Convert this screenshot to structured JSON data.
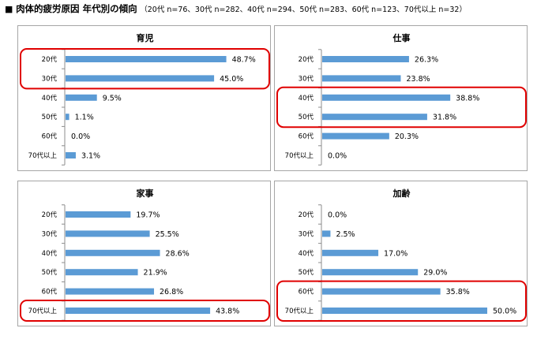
{
  "title": {
    "marker": "■",
    "main": "肉体的疲労原因 年代別の傾向",
    "sub": "（20代 n=76、30代 n=282、40代 n=294、50代 n=283、60代 n=123、70代以上 n=32）"
  },
  "colors": {
    "bar": "#5b9bd5",
    "highlight": "#e00000",
    "border": "#a6a6a6"
  },
  "chart_data": [
    {
      "type": "bar",
      "orientation": "horizontal",
      "title": "育児",
      "categories": [
        "20代",
        "30代",
        "40代",
        "50代",
        "60代",
        "70代以上"
      ],
      "values": [
        48.7,
        45.0,
        9.5,
        1.1,
        0.0,
        3.1
      ],
      "labels": [
        "48.7%",
        "45.0%",
        "9.5%",
        "1.1%",
        "0.0%",
        "3.1%"
      ],
      "highlight": [
        "20代",
        "30代"
      ],
      "xlim": [
        0,
        60
      ]
    },
    {
      "type": "bar",
      "orientation": "horizontal",
      "title": "仕事",
      "categories": [
        "20代",
        "30代",
        "40代",
        "50代",
        "60代",
        "70代以上"
      ],
      "values": [
        26.3,
        23.8,
        38.8,
        31.8,
        20.3,
        0.0
      ],
      "labels": [
        "26.3%",
        "23.8%",
        "38.8%",
        "31.8%",
        "20.3%",
        "0.0%"
      ],
      "highlight": [
        "40代",
        "50代"
      ],
      "xlim": [
        0,
        60
      ]
    },
    {
      "type": "bar",
      "orientation": "horizontal",
      "title": "家事",
      "categories": [
        "20代",
        "30代",
        "40代",
        "50代",
        "60代",
        "70代以上"
      ],
      "values": [
        19.7,
        25.5,
        28.6,
        21.9,
        26.8,
        43.8
      ],
      "labels": [
        "19.7%",
        "25.5%",
        "28.6%",
        "21.9%",
        "26.8%",
        "43.8%"
      ],
      "highlight": [
        "70代以上"
      ],
      "xlim": [
        0,
        60
      ]
    },
    {
      "type": "bar",
      "orientation": "horizontal",
      "title": "加齢",
      "categories": [
        "20代",
        "30代",
        "40代",
        "50代",
        "60代",
        "70代以上"
      ],
      "values": [
        0.0,
        2.5,
        17.0,
        29.0,
        35.8,
        50.0
      ],
      "labels": [
        "0.0%",
        "2.5%",
        "17.0%",
        "29.0%",
        "35.8%",
        "50.0%"
      ],
      "highlight": [
        "60代",
        "70代以上"
      ],
      "xlim": [
        0,
        60
      ]
    }
  ]
}
